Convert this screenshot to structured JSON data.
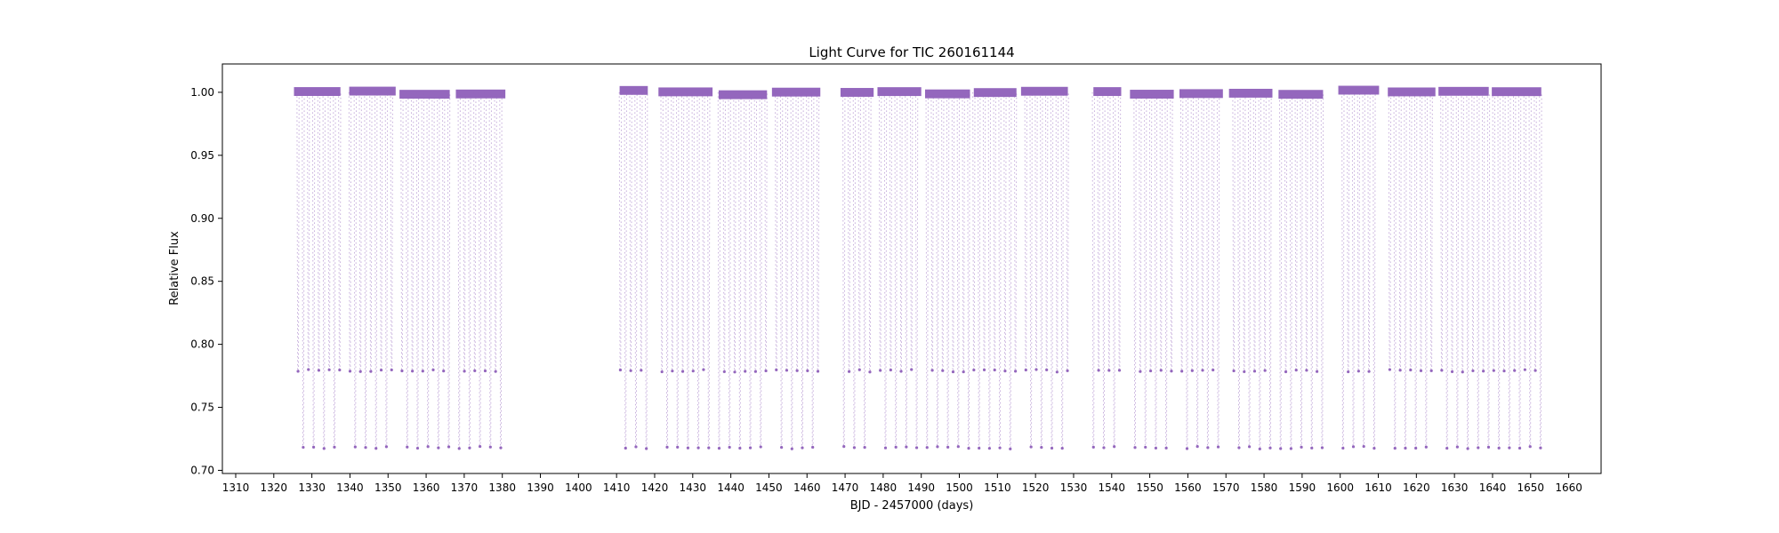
{
  "chart_data": {
    "type": "scatter",
    "title": "Light Curve for TIC 260161144",
    "xlabel": "BJD - 2457000 (days)",
    "ylabel": "Relative Flux",
    "xlim": [
      1306.5,
      1668.5
    ],
    "ylim": [
      0.6975,
      1.0225
    ],
    "grid": false,
    "legend": "none",
    "x_ticks": [
      1310,
      1320,
      1330,
      1340,
      1350,
      1360,
      1370,
      1380,
      1390,
      1400,
      1410,
      1420,
      1430,
      1440,
      1450,
      1460,
      1470,
      1480,
      1490,
      1500,
      1510,
      1520,
      1530,
      1540,
      1550,
      1560,
      1570,
      1580,
      1590,
      1600,
      1610,
      1620,
      1630,
      1640,
      1650,
      1660
    ],
    "x_tick_labels": [
      "1310",
      "1320",
      "1330",
      "1340",
      "1350",
      "1360",
      "1370",
      "1380",
      "1390",
      "1400",
      "1410",
      "1420",
      "1430",
      "1440",
      "1450",
      "1460",
      "1470",
      "1480",
      "1490",
      "1500",
      "1510",
      "1520",
      "1530",
      "1540",
      "1550",
      "1560",
      "1570",
      "1580",
      "1590",
      "1600",
      "1610",
      "1620",
      "1630",
      "1640",
      "1650",
      "1660"
    ],
    "y_ticks": [
      0.7,
      0.75,
      0.8,
      0.85,
      0.9,
      0.95,
      1.0
    ],
    "y_tick_labels": [
      "0.70",
      "0.75",
      "0.80",
      "0.85",
      "0.90",
      "0.95",
      "1.00"
    ],
    "series_color": "#9467bd",
    "baseline_flux": 1.0,
    "period_days": 2.73,
    "first_epoch": 1325.0,
    "primary_eclipse_depth_flux": 0.718,
    "secondary_eclipse_depth_flux": 0.779,
    "observing_segments": [
      [
        1325.3,
        1337.5
      ],
      [
        1339.8,
        1352.0
      ],
      [
        1353.0,
        1366.2
      ],
      [
        1367.8,
        1380.8
      ],
      [
        1410.8,
        1418.2
      ],
      [
        1421.0,
        1435.2
      ],
      [
        1436.8,
        1449.5
      ],
      [
        1450.8,
        1463.5
      ],
      [
        1468.8,
        1477.5
      ],
      [
        1478.5,
        1490.0
      ],
      [
        1491.0,
        1502.8
      ],
      [
        1503.8,
        1515.0
      ],
      [
        1516.2,
        1528.5
      ],
      [
        1535.2,
        1542.5
      ],
      [
        1544.8,
        1556.3
      ],
      [
        1557.8,
        1569.2
      ],
      [
        1570.8,
        1582.2
      ],
      [
        1583.8,
        1595.5
      ],
      [
        1599.5,
        1610.2
      ],
      [
        1612.5,
        1625.0
      ],
      [
        1625.8,
        1639.0
      ],
      [
        1639.8,
        1652.8
      ]
    ]
  }
}
